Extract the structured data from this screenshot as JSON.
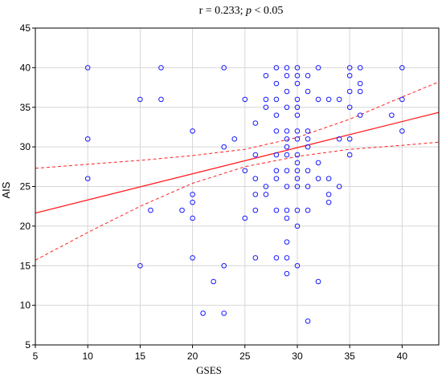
{
  "chart_data": {
    "type": "scatter",
    "title": "r = 0.233; ",
    "title_italic": "p",
    "title_suffix": " < 0.05",
    "xlabel": "GSES",
    "ylabel": "AIS",
    "xlim": [
      5,
      43.5
    ],
    "ylim": [
      5,
      45
    ],
    "xticks": [
      5,
      10,
      15,
      20,
      25,
      30,
      35,
      40
    ],
    "yticks": [
      5,
      10,
      15,
      20,
      25,
      30,
      35,
      40,
      45
    ],
    "grid": true,
    "colors": {
      "points": "#1a1aff",
      "fit": "#ff2020",
      "grid": "#d6d6d6"
    },
    "fit_line": {
      "intercept": 20.0,
      "slope": 0.33
    },
    "ci_lower": [
      [
        5,
        15.7
      ],
      [
        10,
        19.2
      ],
      [
        15,
        22.5
      ],
      [
        20,
        25.4
      ],
      [
        25,
        27.5
      ],
      [
        30,
        28.8
      ],
      [
        35,
        29.7
      ],
      [
        40,
        30.2
      ],
      [
        43.5,
        30.6
      ]
    ],
    "ci_upper": [
      [
        5,
        27.3
      ],
      [
        10,
        27.8
      ],
      [
        15,
        28.3
      ],
      [
        20,
        28.9
      ],
      [
        25,
        29.7
      ],
      [
        30,
        31.2
      ],
      [
        35,
        33.5
      ],
      [
        40,
        36.3
      ],
      [
        43.5,
        38.2
      ]
    ],
    "points": [
      [
        10,
        40
      ],
      [
        10,
        31
      ],
      [
        10,
        26
      ],
      [
        15,
        36
      ],
      [
        15,
        15
      ],
      [
        16,
        22
      ],
      [
        17,
        40
      ],
      [
        17,
        36
      ],
      [
        19,
        22
      ],
      [
        20,
        32
      ],
      [
        20,
        24
      ],
      [
        20,
        23
      ],
      [
        20,
        21
      ],
      [
        20,
        16
      ],
      [
        21,
        9
      ],
      [
        22,
        13
      ],
      [
        23,
        40
      ],
      [
        23,
        30
      ],
      [
        23,
        15
      ],
      [
        23,
        9
      ],
      [
        24,
        31
      ],
      [
        25,
        36
      ],
      [
        25,
        27
      ],
      [
        25,
        21
      ],
      [
        26,
        33
      ],
      [
        26,
        29
      ],
      [
        26,
        26
      ],
      [
        26,
        24
      ],
      [
        26,
        22
      ],
      [
        26,
        16
      ],
      [
        27,
        39
      ],
      [
        27,
        36
      ],
      [
        27,
        35
      ],
      [
        27,
        25
      ],
      [
        27,
        24
      ],
      [
        28,
        40
      ],
      [
        28,
        38
      ],
      [
        28,
        36
      ],
      [
        28,
        34
      ],
      [
        28,
        32
      ],
      [
        28,
        29
      ],
      [
        28,
        27
      ],
      [
        28,
        26
      ],
      [
        28,
        22
      ],
      [
        28,
        16
      ],
      [
        29,
        40
      ],
      [
        29,
        39
      ],
      [
        29,
        37
      ],
      [
        29,
        35
      ],
      [
        29,
        32
      ],
      [
        29,
        31
      ],
      [
        29,
        30
      ],
      [
        29,
        29
      ],
      [
        29,
        27
      ],
      [
        29,
        25
      ],
      [
        29,
        22
      ],
      [
        29,
        21
      ],
      [
        29,
        18
      ],
      [
        29,
        16
      ],
      [
        29,
        14
      ],
      [
        30,
        40
      ],
      [
        30,
        39
      ],
      [
        30,
        38
      ],
      [
        30,
        36
      ],
      [
        30,
        35
      ],
      [
        30,
        34
      ],
      [
        30,
        32
      ],
      [
        30,
        31
      ],
      [
        30,
        29
      ],
      [
        30,
        28
      ],
      [
        30,
        27
      ],
      [
        30,
        26
      ],
      [
        30,
        25
      ],
      [
        30,
        22
      ],
      [
        30,
        20
      ],
      [
        30,
        15
      ],
      [
        31,
        39
      ],
      [
        31,
        37
      ],
      [
        31,
        32
      ],
      [
        31,
        31
      ],
      [
        31,
        30
      ],
      [
        31,
        27
      ],
      [
        31,
        25
      ],
      [
        31,
        22
      ],
      [
        31,
        8
      ],
      [
        32,
        40
      ],
      [
        32,
        36
      ],
      [
        32,
        28
      ],
      [
        32,
        26
      ],
      [
        32,
        13
      ],
      [
        33,
        36
      ],
      [
        33,
        26
      ],
      [
        33,
        24
      ],
      [
        33,
        23
      ],
      [
        34,
        36
      ],
      [
        34,
        31
      ],
      [
        34,
        25
      ],
      [
        35,
        40
      ],
      [
        35,
        39
      ],
      [
        35,
        37
      ],
      [
        35,
        35
      ],
      [
        35,
        31
      ],
      [
        35,
        29
      ],
      [
        36,
        40
      ],
      [
        36,
        38
      ],
      [
        36,
        37
      ],
      [
        36,
        34
      ],
      [
        39,
        34
      ],
      [
        40,
        40
      ],
      [
        40,
        36
      ],
      [
        40,
        32
      ]
    ]
  }
}
